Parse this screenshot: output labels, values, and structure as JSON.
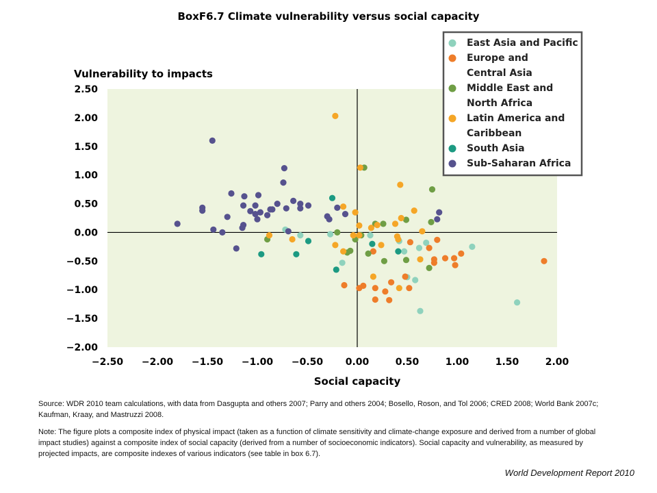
{
  "figure_title": "BoxF6.7 Climate vulnerability versus social capacity",
  "source_text": "Source: WDR 2010 team calculations, with data from Dasgupta and others 2007; Parry and others 2004; Bosello, Roson, and Tol 2006; CRED 2008; World Bank 2007c; Kaufman, Kraay, and Mastruzzi 2008.",
  "note_text": "Note: The figure plots a composite index of physical impact (taken as a function of climate sensitivity and climate-change exposure and derived from a number of global impact studies) against a composite index of social capacity (derived from a number of socioeconomic indicators). Social capacity and vulnerability, as measured by projected impacts, are composite indexes of various indicators (see table in box 6.7).",
  "credit": "World Development Report 2010",
  "chart_data": {
    "type": "scatter",
    "xlabel": "Social capacity",
    "ylabel": "Vulnerability to impacts",
    "xlim": [
      -2.5,
      2.0
    ],
    "ylim": [
      -2.0,
      2.5
    ],
    "x_ticks": [
      "−2.50",
      "−2.00",
      "−1.50",
      "−1.00",
      "−0.50",
      "0.00",
      "0.50",
      "1.00",
      "1.50",
      "2.00"
    ],
    "x_tick_values": [
      -2.5,
      -2.0,
      -1.5,
      -1.0,
      -0.5,
      0.0,
      0.5,
      1.0,
      1.5,
      2.0
    ],
    "y_ticks": [
      "2.50",
      "2.00",
      "1.50",
      "1.00",
      "0.50",
      "0.00",
      "−0.50",
      "−1.00",
      "−1.50",
      "−2.00"
    ],
    "y_tick_values": [
      2.5,
      2.0,
      1.5,
      1.0,
      0.5,
      0.0,
      -0.5,
      -1.0,
      -1.5,
      -2.0
    ],
    "background_color": "#eef4df",
    "legend_position": "top-right",
    "series": [
      {
        "name": "East Asia and Pacific",
        "color": "#8fd2bd",
        "points": [
          [
            -0.72,
            0.05
          ],
          [
            -0.57,
            -0.05
          ],
          [
            -0.27,
            -0.03
          ],
          [
            -0.15,
            -0.53
          ],
          [
            0.13,
            -0.05
          ],
          [
            0.42,
            -0.15
          ],
          [
            0.47,
            -0.33
          ],
          [
            0.5,
            -0.78
          ],
          [
            0.58,
            -0.83
          ],
          [
            0.62,
            -0.27
          ],
          [
            0.69,
            -0.18
          ],
          [
            0.63,
            -1.37
          ],
          [
            1.15,
            -0.25
          ],
          [
            1.6,
            -1.22
          ]
        ]
      },
      {
        "name": "Europe and\nCentral Asia",
        "color": "#ee7d2a",
        "points": [
          [
            -0.13,
            -0.92
          ],
          [
            0.02,
            -0.97
          ],
          [
            0.06,
            -0.93
          ],
          [
            0.16,
            -0.33
          ],
          [
            0.18,
            -0.97
          ],
          [
            0.18,
            -1.17
          ],
          [
            0.28,
            -1.03
          ],
          [
            0.32,
            -1.18
          ],
          [
            0.34,
            -0.87
          ],
          [
            0.48,
            -0.77
          ],
          [
            0.52,
            -0.97
          ],
          [
            0.53,
            -0.17
          ],
          [
            0.72,
            -0.27
          ],
          [
            0.77,
            -0.47
          ],
          [
            0.77,
            -0.53
          ],
          [
            0.8,
            -0.13
          ],
          [
            0.88,
            -0.45
          ],
          [
            0.97,
            -0.45
          ],
          [
            0.98,
            -0.57
          ],
          [
            1.04,
            -0.37
          ],
          [
            1.87,
            -0.5
          ]
        ]
      },
      {
        "name": "Middle East and\nNorth Africa",
        "color": "#6f9e45",
        "points": [
          [
            -0.9,
            -0.12
          ],
          [
            -0.2,
            0.0
          ],
          [
            -0.1,
            -0.35
          ],
          [
            -0.07,
            -0.32
          ],
          [
            -0.02,
            -0.12
          ],
          [
            0.04,
            -0.05
          ],
          [
            0.07,
            1.13
          ],
          [
            0.11,
            -0.37
          ],
          [
            0.18,
            0.15
          ],
          [
            0.26,
            0.15
          ],
          [
            0.27,
            -0.5
          ],
          [
            0.49,
            0.22
          ],
          [
            0.49,
            -0.48
          ],
          [
            0.72,
            -0.62
          ],
          [
            0.74,
            0.18
          ],
          [
            0.75,
            0.75
          ]
        ]
      },
      {
        "name": "Latin America and\nCaribbean",
        "color": "#f5a627",
        "points": [
          [
            -0.22,
            2.03
          ],
          [
            -0.88,
            -0.05
          ],
          [
            -0.65,
            -0.12
          ],
          [
            -0.22,
            -0.22
          ],
          [
            -0.14,
            0.45
          ],
          [
            -0.14,
            -0.33
          ],
          [
            -0.04,
            -0.05
          ],
          [
            -0.02,
            0.35
          ],
          [
            0.02,
            -0.05
          ],
          [
            0.02,
            0.12
          ],
          [
            0.03,
            1.13
          ],
          [
            0.14,
            0.08
          ],
          [
            0.16,
            -0.77
          ],
          [
            0.2,
            0.13
          ],
          [
            0.24,
            -0.22
          ],
          [
            0.38,
            0.15
          ],
          [
            0.4,
            -0.07
          ],
          [
            0.41,
            -0.12
          ],
          [
            0.42,
            -0.97
          ],
          [
            0.43,
            0.83
          ],
          [
            0.44,
            0.25
          ],
          [
            0.57,
            0.38
          ],
          [
            0.63,
            -0.47
          ],
          [
            0.65,
            0.02
          ]
        ]
      },
      {
        "name": "South Asia",
        "color": "#1c9a82",
        "points": [
          [
            -0.96,
            -0.38
          ],
          [
            -0.61,
            -0.38
          ],
          [
            -0.49,
            -0.15
          ],
          [
            -0.25,
            0.6
          ],
          [
            -0.21,
            -0.65
          ],
          [
            0.15,
            -0.2
          ],
          [
            0.41,
            -0.33
          ]
        ]
      },
      {
        "name": "Sub-Saharan Africa",
        "color": "#56528e",
        "points": [
          [
            -1.8,
            0.15
          ],
          [
            -1.55,
            0.38
          ],
          [
            -1.55,
            0.43
          ],
          [
            -1.45,
            1.6
          ],
          [
            -1.44,
            0.05
          ],
          [
            -1.35,
            0.0
          ],
          [
            -1.3,
            0.27
          ],
          [
            -1.26,
            0.68
          ],
          [
            -1.21,
            -0.28
          ],
          [
            -1.15,
            0.08
          ],
          [
            -1.14,
            0.13
          ],
          [
            -1.14,
            0.47
          ],
          [
            -1.13,
            0.63
          ],
          [
            -1.07,
            0.37
          ],
          [
            -1.02,
            0.47
          ],
          [
            -1.02,
            0.32
          ],
          [
            -1.0,
            0.23
          ],
          [
            -0.99,
            0.65
          ],
          [
            -0.97,
            0.35
          ],
          [
            -0.9,
            0.3
          ],
          [
            -0.87,
            0.4
          ],
          [
            -0.85,
            0.4
          ],
          [
            -0.8,
            0.5
          ],
          [
            -0.74,
            0.87
          ],
          [
            -0.73,
            1.12
          ],
          [
            -0.71,
            0.42
          ],
          [
            -0.69,
            0.02
          ],
          [
            -0.64,
            0.55
          ],
          [
            -0.57,
            0.42
          ],
          [
            -0.57,
            0.5
          ],
          [
            -0.49,
            0.47
          ],
          [
            -0.3,
            0.28
          ],
          [
            -0.28,
            0.23
          ],
          [
            -0.2,
            0.43
          ],
          [
            -0.12,
            0.32
          ],
          [
            0.8,
            0.23
          ],
          [
            0.82,
            0.35
          ]
        ]
      }
    ]
  }
}
